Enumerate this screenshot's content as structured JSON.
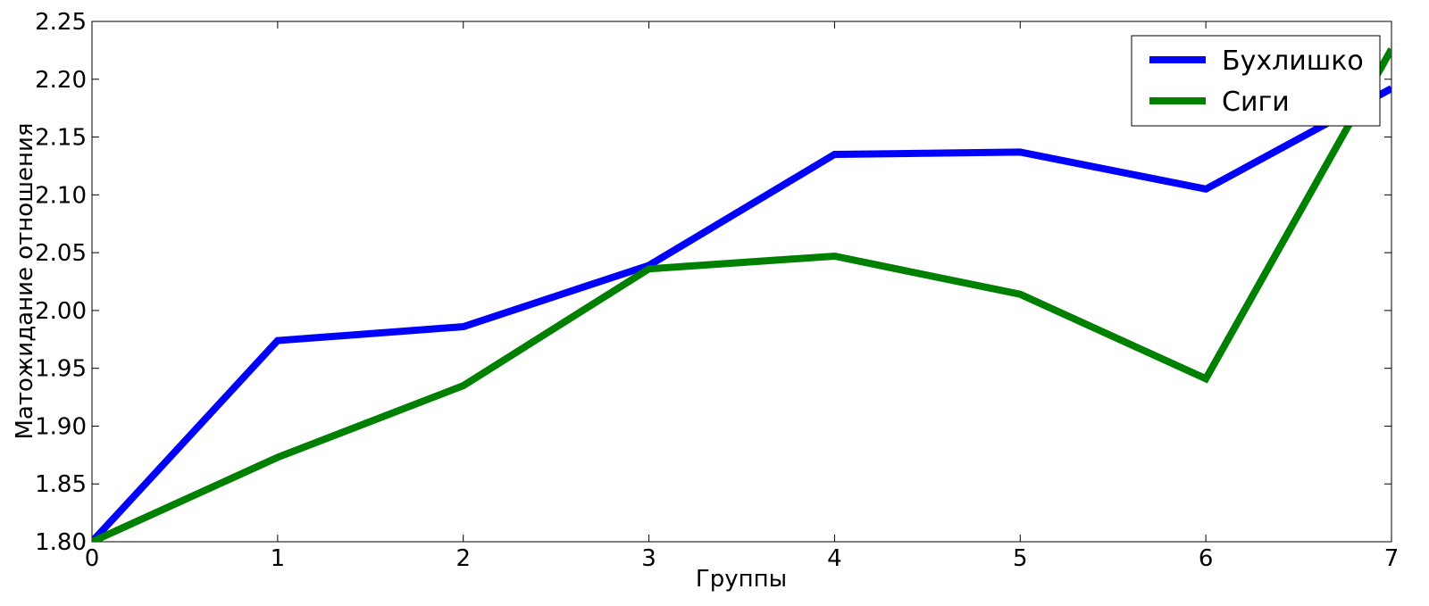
{
  "chart_data": {
    "type": "line",
    "xlabel": "Группы",
    "ylabel": "Матожидание отношения",
    "xlim": [
      0,
      7
    ],
    "ylim": [
      1.8,
      2.25
    ],
    "x_ticks": [
      0,
      1,
      2,
      3,
      4,
      5,
      6,
      7
    ],
    "y_ticks": [
      "1.80",
      "1.85",
      "1.90",
      "1.95",
      "2.00",
      "2.05",
      "2.10",
      "2.15",
      "2.20",
      "2.25"
    ],
    "grid": false,
    "legend_position": "top-right",
    "x": [
      0,
      1,
      2,
      3,
      4,
      5,
      6,
      7
    ],
    "series": [
      {
        "name": "Бухлишко",
        "color": "#0000ff",
        "values": [
          1.8,
          1.974,
          1.986,
          2.039,
          2.135,
          2.137,
          2.105,
          2.192
        ]
      },
      {
        "name": "Сиги",
        "color": "#008000",
        "values": [
          1.8,
          1.873,
          1.935,
          2.036,
          2.047,
          2.014,
          1.941,
          2.226
        ]
      }
    ]
  }
}
